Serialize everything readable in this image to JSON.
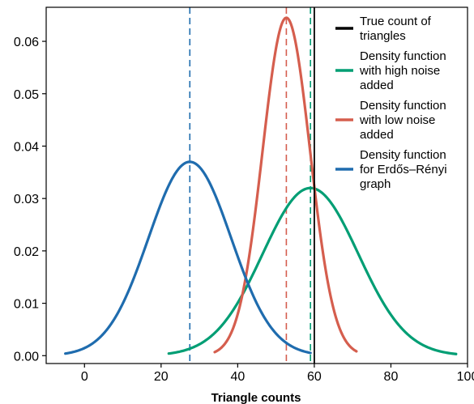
{
  "chart_data": {
    "type": "line",
    "title": "",
    "xlabel": "Triangle counts",
    "ylabel": "",
    "xlim": [
      -10,
      100
    ],
    "ylim": [
      -0.0015,
      0.0665
    ],
    "xticks": [
      0,
      20,
      40,
      60,
      80,
      100
    ],
    "yticks": [
      0.0,
      0.01,
      0.02,
      0.03,
      0.04,
      0.05,
      0.06
    ],
    "ytick_labels": [
      "0.00",
      "0.01",
      "0.02",
      "0.03",
      "0.04",
      "0.05",
      "0.06"
    ],
    "grid": false,
    "legend_position": "top-right",
    "series": [
      {
        "name": "True count of triangles",
        "kind": "vline",
        "x": 60,
        "color": "#000000",
        "dashed": false
      },
      {
        "name": "Density function with high noise added",
        "kind": "density",
        "mean": 59,
        "peak": 0.032,
        "sd": 12.5,
        "x_range": [
          22,
          97
        ],
        "color": "#009e74",
        "dashed_mean": 59
      },
      {
        "name": "Density function with low noise added",
        "kind": "density",
        "mean": 52.7,
        "peak": 0.0645,
        "sd": 6.2,
        "x_range": [
          34,
          71
        ],
        "color": "#d55e4e",
        "dashed_mean": 52.7
      },
      {
        "name": "Density function for Erdős–Rényi graph",
        "kind": "density",
        "mean": 27.5,
        "peak": 0.037,
        "sd": 10.8,
        "x_range": [
          -5,
          59
        ],
        "color": "#1f6cae",
        "dashed_mean": 27.5
      }
    ],
    "legend": [
      {
        "lines": [
          "True count of",
          "triangles"
        ],
        "color": "#000000"
      },
      {
        "lines": [
          "Density function",
          "with high noise",
          "added"
        ],
        "color": "#009e74"
      },
      {
        "lines": [
          "Density function",
          "with low noise",
          "added"
        ],
        "color": "#d55e4e"
      },
      {
        "lines": [
          "Density function",
          "for Erdős–Rényi",
          "graph"
        ],
        "color": "#1f6cae"
      }
    ]
  }
}
